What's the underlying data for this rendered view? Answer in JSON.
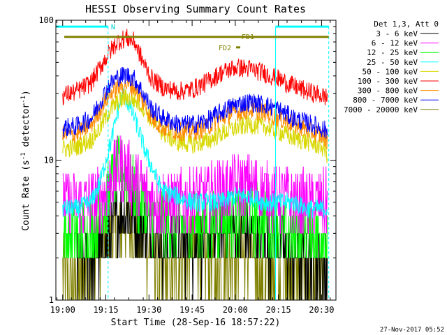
{
  "chart_data": {
    "type": "line",
    "title": "HESSI Observing Summary Count Rates",
    "xlabel": "Start Time (28-Sep-16 18:57:22)",
    "ylabel_main": "Count Rate (s",
    "ylabel_sup1": "-1",
    "ylabel_mid": " detector",
    "ylabel_sup2": "-1",
    "ylabel_end": ")",
    "yscale": "log",
    "xlim_min": [
      -2.37,
      95
    ],
    "ylim": [
      1,
      100
    ],
    "x_ticks": [
      {
        "t": 0,
        "label": "19:00"
      },
      {
        "t": 15,
        "label": "19:15"
      },
      {
        "t": 30,
        "label": "19:30"
      },
      {
        "t": 45,
        "label": "19:45"
      },
      {
        "t": 60,
        "label": "20:00"
      },
      {
        "t": 75,
        "label": "20:15"
      },
      {
        "t": 90,
        "label": "20:30"
      }
    ],
    "y_ticks": [
      {
        "v": 1,
        "label": "1"
      },
      {
        "v": 10,
        "label": "10"
      },
      {
        "v": 100,
        "label": "100"
      }
    ],
    "legend_header": "Det 1,3, Att 0",
    "series": [
      {
        "name": "3 - 6 keV",
        "color": "#000000",
        "x": [
          5,
          10,
          15,
          18,
          20,
          22,
          25,
          30,
          35,
          40,
          45,
          50,
          55,
          60,
          65,
          70,
          75,
          80,
          85,
          90,
          92
        ],
        "y": [
          2,
          2,
          2.5,
          3.5,
          4,
          4.5,
          4,
          3,
          2.5,
          2.5,
          2.5,
          2.5,
          3,
          3,
          3,
          2.5,
          2.5,
          2,
          2,
          1.8,
          1.5
        ]
      },
      {
        "name": "6 - 12 keV",
        "color": "#ff00ff",
        "x": [
          0,
          5,
          10,
          15,
          18,
          20,
          22,
          25,
          30,
          35,
          40,
          45,
          50,
          55,
          60,
          65,
          70,
          75,
          80,
          85,
          90,
          92
        ],
        "y": [
          5,
          5,
          5,
          6,
          8,
          9,
          8.5,
          7,
          5.5,
          5,
          5,
          5.5,
          5.5,
          6,
          6.5,
          6.5,
          6,
          5.5,
          5,
          5,
          5,
          5
        ]
      },
      {
        "name": "12 - 25 keV",
        "color": "#00ff00",
        "x": [
          0,
          5,
          10,
          15,
          18,
          20,
          22,
          25,
          30,
          35,
          40,
          45,
          50,
          55,
          60,
          65,
          70,
          75,
          80,
          85,
          90,
          92
        ],
        "y": [
          3,
          3,
          3.2,
          5,
          8,
          9,
          8,
          6,
          4,
          3.5,
          3.5,
          3.5,
          3.5,
          3.8,
          4,
          4,
          3.8,
          3.5,
          3,
          3,
          3,
          2.8
        ]
      },
      {
        "name": "25 - 50 keV",
        "color": "#00ffff",
        "x": [
          0,
          5,
          10,
          13,
          15,
          17,
          19,
          21,
          23,
          25,
          27,
          29,
          31,
          33,
          35,
          40,
          45,
          50,
          55,
          60,
          65,
          70,
          75,
          80,
          85,
          90,
          92
        ],
        "y": [
          4.5,
          4.5,
          5,
          7,
          10,
          14,
          22,
          30,
          25,
          20,
          15,
          11,
          9,
          7,
          6,
          5.5,
          5,
          5,
          5,
          5.5,
          5.5,
          5,
          5,
          5,
          4.5,
          4.5,
          4.5
        ]
      },
      {
        "name": "50 - 100 keV",
        "color": "#d8d800",
        "x": [
          0,
          5,
          10,
          13,
          16,
          19,
          22,
          25,
          28,
          32,
          36,
          40,
          45,
          50,
          55,
          60,
          65,
          70,
          75,
          80,
          85,
          90,
          92
        ],
        "y": [
          12,
          12.5,
          14,
          17,
          22,
          26,
          28,
          27,
          24,
          18,
          15,
          13.5,
          13,
          13.5,
          15.5,
          17,
          18,
          17.5,
          16,
          14.5,
          13.5,
          12.5,
          11
        ]
      },
      {
        "name": "100 - 300 keV",
        "color": "#ff0000",
        "x": [
          0,
          5,
          10,
          13,
          16,
          19,
          22,
          25,
          28,
          31,
          35,
          40,
          45,
          50,
          55,
          60,
          65,
          70,
          75,
          80,
          85,
          90,
          92
        ],
        "y": [
          29,
          31,
          36,
          46,
          58,
          70,
          75,
          70,
          50,
          38,
          33,
          31,
          32,
          36,
          42,
          46,
          45,
          42,
          38,
          34,
          31,
          29,
          28
        ]
      },
      {
        "name": "300 - 800 keV",
        "color": "#ff8c00",
        "x": [
          0,
          5,
          10,
          13,
          16,
          19,
          22,
          25,
          28,
          31,
          35,
          40,
          45,
          50,
          55,
          60,
          65,
          70,
          75,
          80,
          85,
          90,
          92
        ],
        "y": [
          15,
          15.5,
          18,
          23,
          29,
          33,
          35,
          33,
          26,
          20,
          17,
          16,
          16,
          17,
          20,
          22,
          23,
          22,
          20,
          18,
          16.5,
          15,
          14
        ]
      },
      {
        "name": "800 - 7000 keV",
        "color": "#0000ff",
        "x": [
          0,
          5,
          10,
          13,
          16,
          19,
          22,
          25,
          28,
          31,
          35,
          40,
          45,
          50,
          55,
          60,
          65,
          70,
          75,
          80,
          85,
          90,
          92
        ],
        "y": [
          17,
          17.5,
          20,
          26,
          34,
          39,
          41,
          38,
          30,
          23,
          20,
          18,
          18,
          19,
          22,
          25,
          26,
          25,
          23,
          20,
          18.5,
          17,
          16
        ]
      },
      {
        "name": "7000 - 20000 keV",
        "color": "#808000",
        "x": [
          0,
          3,
          6,
          10,
          14,
          18,
          22,
          26,
          30,
          34,
          38,
          42,
          46,
          50,
          54,
          58,
          62,
          66,
          70,
          74,
          78,
          82,
          86,
          90,
          92
        ],
        "y": [
          1.5,
          1.2,
          1.5,
          2,
          2.5,
          3,
          3.5,
          3,
          2.2,
          1.5,
          1.5,
          2,
          2.5,
          2,
          1.5,
          2,
          2.5,
          2,
          1.5,
          1.2,
          1.5,
          1.3,
          1.5,
          1.3,
          1.2
        ]
      }
    ],
    "flags": {
      "night_label": "N",
      "fd1_label": "FD1",
      "fd2_label": "FD2",
      "night_periods": [
        [
          -2.37,
          15.8
        ],
        [
          74,
          92.5
        ]
      ],
      "y_night": 90
    },
    "timestamp": "27-Nov-2017 05:52"
  }
}
